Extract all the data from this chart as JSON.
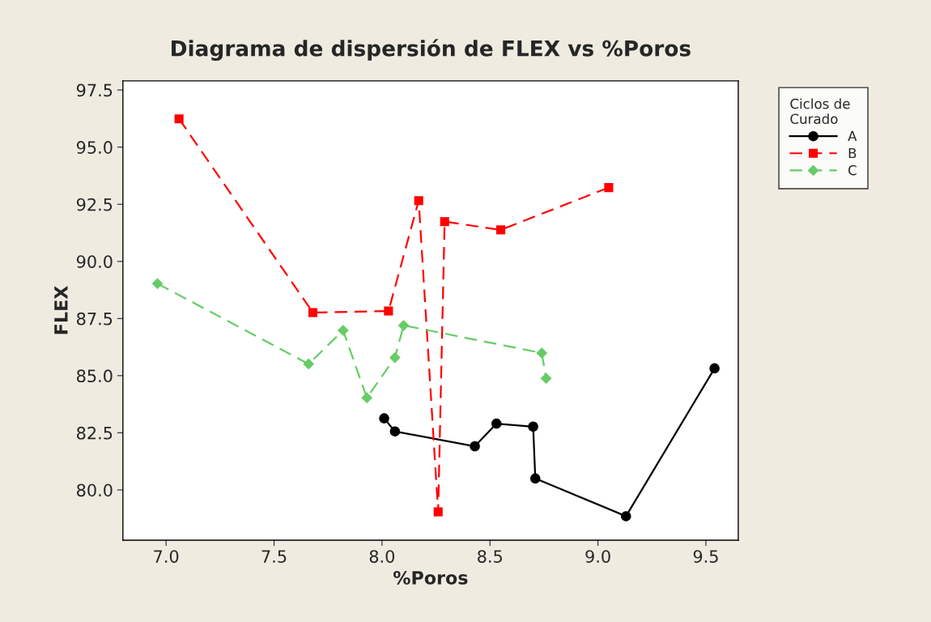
{
  "chart_data": {
    "type": "line",
    "title": "Diagrama de dispersión de FLEX vs %Poros",
    "xlabel": "%Poros",
    "ylabel": "FLEX",
    "legend_title": "Ciclos de\nCurado",
    "legend": "top right",
    "grid": false,
    "xlim": [
      6.8,
      9.65
    ],
    "xticks": [
      {
        "value": 7.0,
        "label": "7.0"
      },
      {
        "value": 7.5,
        "label": "7.5"
      },
      {
        "value": 8.0,
        "label": "8.0"
      },
      {
        "value": 8.5,
        "label": "8.5"
      },
      {
        "value": 9.0,
        "label": "9.0"
      },
      {
        "value": 9.5,
        "label": "9.5"
      }
    ],
    "ylim": [
      77.8,
      97.9
    ],
    "yticks": [
      {
        "value": 80.0,
        "label": "80.0"
      },
      {
        "value": 82.5,
        "label": "82.5"
      },
      {
        "value": 85.0,
        "label": "85.0"
      },
      {
        "value": 87.5,
        "label": "87.5"
      },
      {
        "value": 90.0,
        "label": "90.0"
      },
      {
        "value": 92.5,
        "label": "92.5"
      },
      {
        "value": 95.0,
        "label": "95.0"
      },
      {
        "value": 97.5,
        "label": "97.5"
      }
    ],
    "series": [
      {
        "name": "A",
        "color": "#000000",
        "marker": "circle",
        "line_style": "solid",
        "x": [
          8.01,
          8.06,
          8.43,
          8.53,
          8.7,
          8.71,
          9.13,
          9.54
        ],
        "values": [
          83.13,
          82.56,
          81.91,
          82.9,
          82.77,
          80.5,
          78.85,
          85.32
        ]
      },
      {
        "name": "B",
        "color": "#ff0000",
        "marker": "square",
        "line_style": "dashed",
        "x": [
          7.06,
          7.68,
          8.03,
          8.17,
          8.26,
          8.29,
          8.55,
          9.05
        ],
        "values": [
          96.24,
          87.76,
          87.83,
          92.66,
          79.04,
          91.74,
          91.38,
          93.23
        ]
      },
      {
        "name": "C",
        "color": "#66cc66",
        "marker": "diamond",
        "line_style": "dashed",
        "x": [
          6.96,
          7.66,
          7.82,
          7.93,
          8.06,
          8.1,
          8.74,
          8.76
        ],
        "values": [
          89.03,
          85.51,
          86.98,
          84.03,
          85.79,
          87.2,
          85.99,
          84.88
        ]
      }
    ]
  }
}
